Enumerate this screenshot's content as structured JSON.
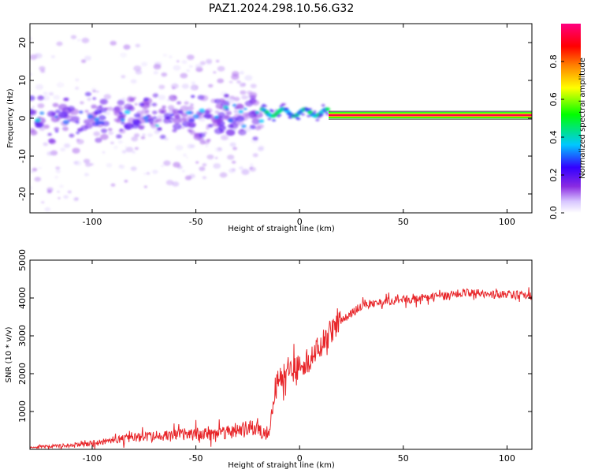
{
  "title": "PAZ1.2024.298.10.56.G32",
  "chart_data": [
    {
      "type": "heatmap",
      "xlabel": "Height of straight line (km)",
      "ylabel": "Frequency (Hz)",
      "xlim": [
        -130,
        112
      ],
      "ylim": [
        -25,
        25
      ],
      "xticks": [
        "-100",
        "-50",
        "0",
        "50",
        "100"
      ],
      "yticks": [
        "20",
        "10",
        "0",
        "-10",
        "-20"
      ],
      "colorbar": {
        "label": "Normalized spectral amplitude",
        "ticks": [
          "0.0",
          "0.2",
          "0.4",
          "0.6",
          "0.8"
        ],
        "range": [
          0,
          1
        ],
        "colors": [
          "#ffffff",
          "#d8c6ff",
          "#8a2be2",
          "#3300ff",
          "#00c8ff",
          "#00ff00",
          "#ffff00",
          "#ff8000",
          "#ff0000",
          "#ff0080"
        ]
      },
      "features": {
        "stable_carrier": {
          "x_start": 14,
          "x_end": 112,
          "freq": 0.8,
          "amplitude": 0.95
        },
        "transition_region": {
          "x_start": -18,
          "x_end": 14,
          "freq": 1.5
        },
        "scattered_region": {
          "x_start": -130,
          "x_end": -18,
          "freq_spread": 25
        }
      }
    },
    {
      "type": "line",
      "xlabel": "Height of straight line (km)",
      "ylabel": "SNR (10 * v/v)",
      "xlim": [
        -130,
        112
      ],
      "ylim": [
        0,
        5000
      ],
      "xticks": [
        "-100",
        "-50",
        "0",
        "50",
        "100"
      ],
      "yticks": [
        "5000",
        "4000",
        "3000",
        "2000",
        "1000"
      ],
      "color": "#e8262a",
      "series": [
        {
          "x": [
            -130,
            -120,
            -110,
            -100,
            -90,
            -80,
            -70,
            -60,
            -50,
            -40,
            -30,
            -20,
            -15,
            -12,
            -10,
            -8,
            -5,
            0,
            5,
            10,
            15,
            20,
            25,
            30,
            35,
            40,
            50,
            60,
            70,
            80,
            90,
            100,
            112
          ],
          "values": [
            50,
            80,
            100,
            150,
            250,
            300,
            350,
            380,
            400,
            450,
            500,
            550,
            450,
            1500,
            1900,
            2000,
            2100,
            2200,
            2400,
            2700,
            3100,
            3400,
            3600,
            3800,
            3850,
            3900,
            3950,
            4000,
            4050,
            4150,
            4100,
            4100,
            4050
          ]
        }
      ]
    }
  ]
}
